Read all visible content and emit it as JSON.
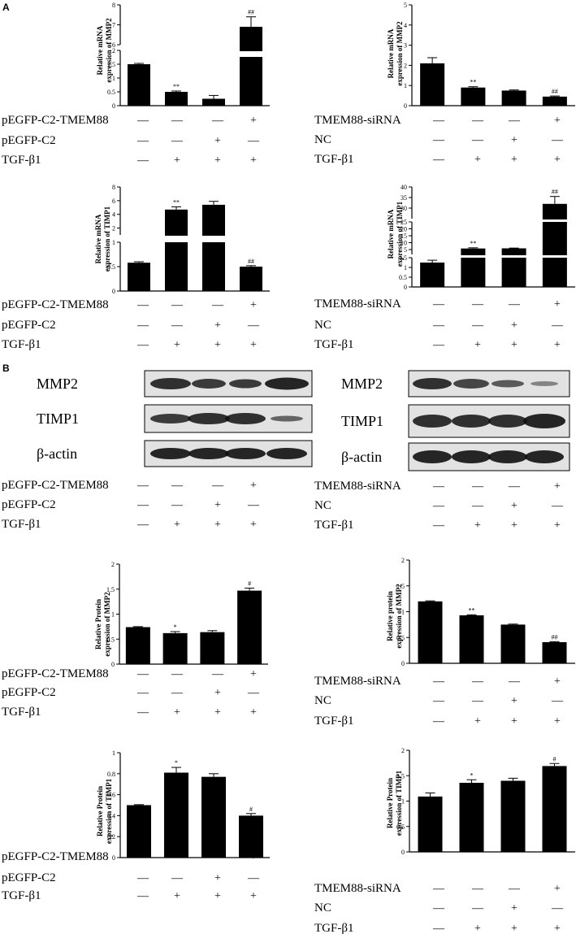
{
  "panel_labels": {
    "a": "A",
    "b": "B"
  },
  "overexpression_rows": [
    {
      "label": "pEGFP-C2-TMEM88",
      "marks": [
        "—",
        "—",
        "—",
        "+"
      ]
    },
    {
      "label": "pEGFP-C2",
      "marks": [
        "—",
        "—",
        "+",
        "—"
      ]
    },
    {
      "label": "TGF-β1",
      "marks": [
        "—",
        "+",
        "+",
        "+"
      ]
    }
  ],
  "knockdown_rows": [
    {
      "label": "TMEM88-siRNA",
      "marks": [
        "—",
        "—",
        "—",
        "+"
      ]
    },
    {
      "label": "NC",
      "marks": [
        "—",
        "—",
        "+",
        "—"
      ]
    },
    {
      "label": "TGF-β1",
      "marks": [
        "—",
        "+",
        "+",
        "+"
      ]
    }
  ],
  "blot_labels": {
    "mmp2": "MMP2",
    "timp1": "TIMP1",
    "actin": "β-actin"
  },
  "chart_data": [
    {
      "id": "mrna-mmp2-oe",
      "type": "bar",
      "ylabel": "Relative mRNA expression of MMP2",
      "values": [
        1.5,
        0.5,
        0.25,
        6.9
      ],
      "errors": [
        0.03,
        0.03,
        0.12,
        0.5
      ],
      "annotations": [
        "",
        "**",
        "",
        "##"
      ],
      "axis_break": {
        "lower": [
          0,
          2
        ],
        "upper": [
          6,
          8
        ]
      },
      "yticks": [
        0,
        0.5,
        1,
        1.5,
        2,
        6,
        7,
        8
      ]
    },
    {
      "id": "mrna-mmp2-kd",
      "type": "bar",
      "ylabel": "Relative mRNA expression of MMP2",
      "values": [
        2.1,
        0.9,
        0.75,
        0.45
      ],
      "errors": [
        0.28,
        0.04,
        0.03,
        0.03
      ],
      "annotations": [
        "",
        "**",
        "",
        "##"
      ],
      "ylim": [
        0,
        5
      ],
      "yticks": [
        0,
        1,
        2,
        3,
        4,
        5
      ]
    },
    {
      "id": "mrna-timp1-oe",
      "type": "bar",
      "ylabel": "Relative mRNA expression of TIMP1",
      "values": [
        0.58,
        4.7,
        5.4,
        0.5
      ],
      "errors": [
        0.02,
        0.4,
        0.5,
        0.02
      ],
      "annotations": [
        "",
        "**",
        "",
        "##"
      ],
      "axis_break": {
        "lower": [
          0,
          1
        ],
        "upper": [
          1,
          8
        ]
      },
      "yticks": [
        0,
        0.5,
        1,
        2,
        4,
        6,
        8
      ]
    },
    {
      "id": "mrna-timp1-kd",
      "type": "bar",
      "ylabel": "Relative mRNA expression of TIMP1",
      "values": [
        1.25,
        5.8,
        5.9,
        32
      ],
      "errors": [
        0.12,
        0.5,
        0.2,
        3.5
      ],
      "annotations": [
        "",
        "**",
        "",
        "##"
      ],
      "axis_breaks": {
        "low": [
          0,
          1.5
        ],
        "mid": [
          1.5,
          25
        ],
        "high": [
          25,
          40
        ]
      },
      "yticks": [
        0,
        0.5,
        1,
        1.5,
        5,
        10,
        15,
        20,
        25,
        30,
        35,
        40
      ]
    },
    {
      "id": "protein-mmp2-oe",
      "type": "bar",
      "ylabel": "Relative Protein expression of MMP2",
      "values": [
        0.74,
        0.62,
        0.64,
        1.47
      ],
      "errors": [
        0.01,
        0.03,
        0.03,
        0.05
      ],
      "annotations": [
        "",
        "*",
        "",
        "#"
      ],
      "ylim": [
        0,
        2
      ],
      "yticks": [
        0,
        0.5,
        1,
        1.5,
        2
      ]
    },
    {
      "id": "protein-mmp2-kd",
      "type": "bar",
      "ylabel": "Relative protein expression of MMP2",
      "values": [
        1.2,
        0.93,
        0.75,
        0.41
      ],
      "errors": [
        0.01,
        0.01,
        0.01,
        0.01
      ],
      "annotations": [
        "",
        "**",
        "",
        "##"
      ],
      "ylim": [
        0,
        2
      ],
      "yticks": [
        0,
        0.5,
        1,
        1.5,
        2
      ]
    },
    {
      "id": "protein-timp1-oe",
      "type": "bar",
      "ylabel": "Relative Protein expression of TIMP1",
      "values": [
        0.5,
        0.81,
        0.77,
        0.4
      ],
      "errors": [
        0.005,
        0.05,
        0.03,
        0.02
      ],
      "annotations": [
        "",
        "*",
        "",
        "#"
      ],
      "ylim": [
        0,
        1
      ],
      "yticks": [
        0,
        0.2,
        0.4,
        0.6,
        0.8,
        1
      ]
    },
    {
      "id": "protein-timp1-kd",
      "type": "bar",
      "ylabel": "Relative Protein expression of TIMP1",
      "values": [
        1.09,
        1.36,
        1.4,
        1.69
      ],
      "errors": [
        0.07,
        0.06,
        0.05,
        0.05
      ],
      "annotations": [
        "",
        "*",
        "",
        "#"
      ],
      "ylim": [
        0,
        2
      ],
      "yticks": [
        0,
        0.5,
        1,
        1.5,
        2
      ]
    }
  ]
}
